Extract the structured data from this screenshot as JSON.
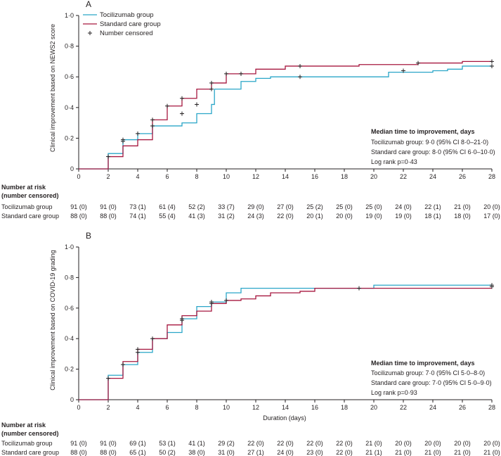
{
  "legend": {
    "toci": "Tocilizumab group",
    "std": "Standard care group",
    "censored": "Number censored"
  },
  "colors": {
    "toci": "#2aa6c8",
    "std": "#a6173f",
    "axis": "#231f20"
  },
  "chart_data": [
    {
      "type": "line",
      "panel": "A",
      "ylabel": "Clinical improvement based on NEWS2 score",
      "xlabel": "",
      "xlim": [
        0,
        28
      ],
      "ylim": [
        0,
        1
      ],
      "x_ticks": [
        0,
        2,
        4,
        6,
        8,
        10,
        12,
        14,
        16,
        18,
        20,
        22,
        24,
        26,
        28
      ],
      "y_ticks": [
        "0",
        "0·2",
        "0·4",
        "0·6",
        "0·8",
        "1·0"
      ],
      "y_tick_values": [
        0,
        0.2,
        0.4,
        0.6,
        0.8,
        1.0
      ],
      "series": [
        {
          "name": "Tocilizumab group",
          "key": "toci",
          "steps": [
            [
              0,
              0
            ],
            [
              2,
              0.1
            ],
            [
              3,
              0.19
            ],
            [
              4,
              0.23
            ],
            [
              5,
              0.28
            ],
            [
              6,
              0.28
            ],
            [
              7,
              0.3
            ],
            [
              8,
              0.36
            ],
            [
              9,
              0.42
            ],
            [
              9.2,
              0.52
            ],
            [
              11,
              0.57
            ],
            [
              12,
              0.59
            ],
            [
              13,
              0.6
            ],
            [
              15,
              0.6
            ],
            [
              21,
              0.63
            ],
            [
              24,
              0.64
            ],
            [
              25,
              0.65
            ],
            [
              26,
              0.67
            ],
            [
              28,
              0.67
            ]
          ],
          "censored": [
            [
              2,
              0.08
            ],
            [
              3,
              0.19
            ],
            [
              4,
              0.23
            ],
            [
              5,
              0.28
            ],
            [
              7,
              0.36
            ],
            [
              8,
              0.42
            ],
            [
              9,
              0.52
            ],
            [
              11,
              0.62
            ],
            [
              15,
              0.67
            ],
            [
              22,
              0.64
            ],
            [
              28,
              0.67
            ]
          ]
        },
        {
          "name": "Standard care group",
          "key": "std",
          "steps": [
            [
              0,
              0
            ],
            [
              2,
              0.08
            ],
            [
              3,
              0.15
            ],
            [
              4,
              0.19
            ],
            [
              5,
              0.32
            ],
            [
              6,
              0.41
            ],
            [
              7,
              0.46
            ],
            [
              8,
              0.52
            ],
            [
              9,
              0.56
            ],
            [
              10,
              0.62
            ],
            [
              12,
              0.65
            ],
            [
              14,
              0.67
            ],
            [
              19,
              0.68
            ],
            [
              23,
              0.69
            ],
            [
              26,
              0.7
            ],
            [
              28,
              0.7
            ]
          ],
          "censored": [
            [
              3,
              0.18
            ],
            [
              5,
              0.32
            ],
            [
              6,
              0.41
            ],
            [
              7,
              0.46
            ],
            [
              9,
              0.56
            ],
            [
              10,
              0.62
            ],
            [
              15,
              0.6
            ],
            [
              23,
              0.69
            ],
            [
              28,
              0.7
            ]
          ]
        }
      ],
      "median": {
        "title": "Median time to improvement, days",
        "line1": "Tocilizumab group: 9·0 (95% CI 8·0–21·0)",
        "line2": "Standard care group: 8·0 (95% CI 6·0–10·0)",
        "line3": "Log rank p=0·43"
      },
      "risk": {
        "header1": "Number at risk",
        "header2": "(number censored)",
        "toci_label": "Tocilizumab group",
        "std_label": "Standard care group",
        "toci": [
          "91 (0)",
          "91 (0)",
          "73 (1)",
          "61 (4)",
          "52 (2)",
          "33 (7)",
          "29 (0)",
          "27 (0)",
          "25 (2)",
          "25 (0)",
          "25 (0)",
          "24 (0)",
          "22 (1)",
          "21 (0)",
          "20 (0)"
        ],
        "std": [
          "88 (0)",
          "88 (0)",
          "74 (1)",
          "55 (4)",
          "41 (3)",
          "31 (2)",
          "24 (3)",
          "22 (0)",
          "20 (1)",
          "20 (0)",
          "19 (0)",
          "19 (0)",
          "18 (1)",
          "18 (0)",
          "17 (0)"
        ]
      }
    },
    {
      "type": "line",
      "panel": "B",
      "ylabel": "Clinical improvement based on COVID-19 grading",
      "xlabel": "Duration (days)",
      "xlim": [
        0,
        28
      ],
      "ylim": [
        0,
        1
      ],
      "x_ticks": [
        0,
        2,
        4,
        6,
        8,
        10,
        12,
        14,
        16,
        18,
        20,
        22,
        24,
        26,
        28
      ],
      "y_ticks": [
        "0",
        "0·2",
        "0·4",
        "0·6",
        "0·8",
        "1·0"
      ],
      "y_tick_values": [
        0,
        0.2,
        0.4,
        0.6,
        0.8,
        1.0
      ],
      "series": [
        {
          "name": "Tocilizumab group",
          "key": "toci",
          "steps": [
            [
              0,
              0
            ],
            [
              2,
              0.16
            ],
            [
              3,
              0.23
            ],
            [
              4,
              0.31
            ],
            [
              5,
              0.4
            ],
            [
              6,
              0.44
            ],
            [
              7,
              0.53
            ],
            [
              8,
              0.61
            ],
            [
              9,
              0.64
            ],
            [
              10,
              0.7
            ],
            [
              11,
              0.73
            ],
            [
              20,
              0.75
            ],
            [
              28,
              0.75
            ]
          ],
          "censored": [
            [
              3,
              0.23
            ],
            [
              4,
              0.31
            ],
            [
              5,
              0.4
            ],
            [
              7,
              0.53
            ],
            [
              9,
              0.64
            ],
            [
              10,
              0.65
            ],
            [
              19,
              0.73
            ],
            [
              28,
              0.75
            ]
          ]
        },
        {
          "name": "Standard care group",
          "key": "std",
          "steps": [
            [
              0,
              0
            ],
            [
              2,
              0.14
            ],
            [
              3,
              0.25
            ],
            [
              4,
              0.33
            ],
            [
              5,
              0.4
            ],
            [
              6,
              0.49
            ],
            [
              7,
              0.55
            ],
            [
              8,
              0.58
            ],
            [
              9,
              0.63
            ],
            [
              10,
              0.65
            ],
            [
              11,
              0.66
            ],
            [
              12,
              0.68
            ],
            [
              13,
              0.7
            ],
            [
              15,
              0.71
            ],
            [
              16,
              0.73
            ],
            [
              28,
              0.73
            ]
          ],
          "censored": [
            [
              2,
              0.14
            ],
            [
              4,
              0.33
            ],
            [
              7,
              0.52
            ],
            [
              9,
              0.63
            ],
            [
              28,
              0.74
            ]
          ]
        }
      ],
      "median": {
        "title": "Median time to improvement, days",
        "line1": "Tocilizumab group: 7·0 (95% CI 5·0–8·0)",
        "line2": "Standard care group: 7·0 (95% CI 5·0–9·0)",
        "line3": "Log rank p=0·93"
      },
      "risk": {
        "header1": "Number at risk",
        "header2": "(number censored)",
        "toci_label": "Tocilizumab group",
        "std_label": "Standard care group",
        "toci": [
          "91 (0)",
          "91 (0)",
          "69 (1)",
          "53 (1)",
          "41 (1)",
          "29 (2)",
          "22 (0)",
          "22 (0)",
          "22 (0)",
          "22 (0)",
          "21 (0)",
          "20 (0)",
          "20 (0)",
          "20 (0)",
          "20 (0)"
        ],
        "std": [
          "88 (0)",
          "88 (0)",
          "65 (1)",
          "50 (2)",
          "38 (0)",
          "31 (0)",
          "27 (1)",
          "24 (0)",
          "23 (0)",
          "22 (0)",
          "21 (1)",
          "21 (0)",
          "21 (0)",
          "21 (0)",
          "21 (0)"
        ]
      }
    }
  ]
}
